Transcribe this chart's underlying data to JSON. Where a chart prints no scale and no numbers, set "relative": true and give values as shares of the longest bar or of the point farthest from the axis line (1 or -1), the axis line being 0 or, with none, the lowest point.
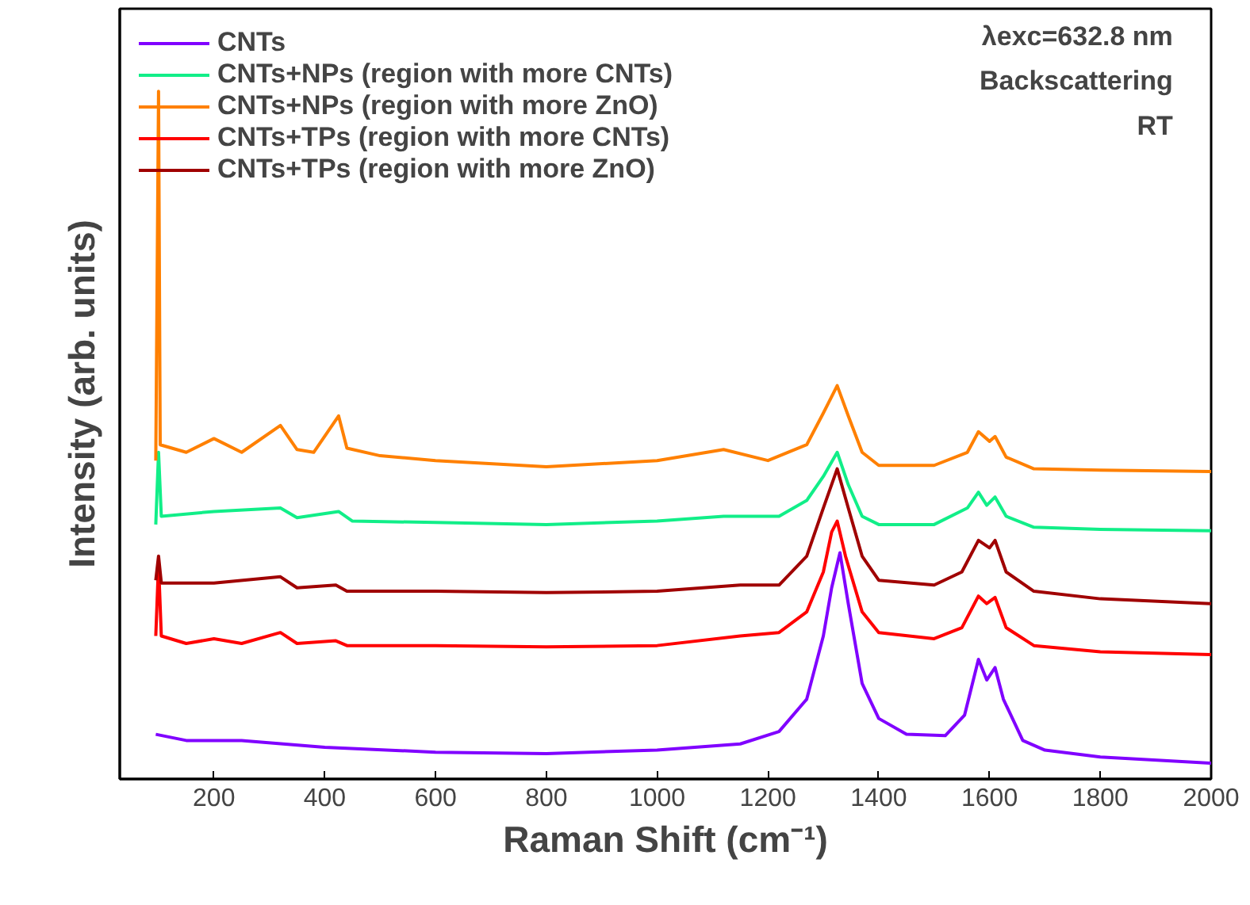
{
  "chart_data": {
    "type": "line",
    "relative": true,
    "xlabel": "Raman Shift (cm⁻¹)",
    "ylabel": "Intensity (arb. units)",
    "xlim": [
      30,
      2000
    ],
    "xticks": [
      200,
      400,
      600,
      800,
      1000,
      1200,
      1400,
      1600,
      1800,
      2000
    ],
    "tick_labels": "x",
    "grid": false,
    "legend": "top left",
    "marker": "none",
    "line_style": "solid",
    "annotations": [
      "λexc=632.8 nm",
      "Backscattering",
      "RT"
    ],
    "series": [
      {
        "name": "CNTs",
        "color": "#8000ff",
        "x": [
          95,
          150,
          250,
          400,
          600,
          800,
          1000,
          1150,
          1220,
          1270,
          1300,
          1315,
          1330,
          1345,
          1370,
          1400,
          1450,
          1520,
          1555,
          1580,
          1595,
          1610,
          1625,
          1660,
          1700,
          1800,
          2000
        ],
        "values": [
          0.065,
          0.056,
          0.056,
          0.046,
          0.039,
          0.037,
          0.042,
          0.051,
          0.069,
          0.116,
          0.208,
          0.278,
          0.329,
          0.255,
          0.139,
          0.088,
          0.065,
          0.063,
          0.093,
          0.174,
          0.144,
          0.162,
          0.116,
          0.056,
          0.042,
          0.032,
          0.023
        ]
      },
      {
        "name": "CNTs+NPs (region with more CNTs)",
        "color": "#11ee88",
        "x": [
          95,
          100,
          105,
          200,
          320,
          350,
          425,
          450,
          600,
          800,
          1000,
          1120,
          1220,
          1270,
          1300,
          1325,
          1345,
          1370,
          1400,
          1500,
          1560,
          1580,
          1595,
          1610,
          1630,
          1680,
          1800,
          2000
        ],
        "values": [
          0.37,
          0.475,
          0.382,
          0.389,
          0.394,
          0.38,
          0.389,
          0.375,
          0.373,
          0.37,
          0.375,
          0.382,
          0.382,
          0.405,
          0.44,
          0.475,
          0.428,
          0.382,
          0.37,
          0.37,
          0.394,
          0.417,
          0.398,
          0.41,
          0.382,
          0.366,
          0.363,
          0.361
        ]
      },
      {
        "name": "CNTs+NPs (region with more ZnO)",
        "color": "#ff8000",
        "x": [
          95,
          100,
          103,
          150,
          200,
          250,
          320,
          350,
          380,
          425,
          440,
          500,
          600,
          800,
          1000,
          1120,
          1200,
          1270,
          1300,
          1325,
          1345,
          1370,
          1400,
          1500,
          1560,
          1580,
          1600,
          1610,
          1630,
          1680,
          1800,
          2000
        ],
        "values": [
          0.463,
          1,
          0.486,
          0.475,
          0.495,
          0.475,
          0.514,
          0.479,
          0.475,
          0.528,
          0.481,
          0.47,
          0.463,
          0.454,
          0.463,
          0.479,
          0.463,
          0.486,
          0.532,
          0.572,
          0.528,
          0.475,
          0.456,
          0.456,
          0.475,
          0.505,
          0.491,
          0.498,
          0.468,
          0.451,
          0.449,
          0.447
        ]
      },
      {
        "name": "CNTs+TPs (region with more CNTs)",
        "color": "#ff0000",
        "x": [
          95,
          100,
          105,
          150,
          200,
          250,
          320,
          350,
          420,
          440,
          600,
          800,
          1000,
          1150,
          1220,
          1270,
          1300,
          1315,
          1325,
          1340,
          1370,
          1400,
          1500,
          1550,
          1580,
          1595,
          1610,
          1630,
          1680,
          1800,
          2000
        ],
        "values": [
          0.208,
          0.313,
          0.208,
          0.197,
          0.204,
          0.197,
          0.213,
          0.197,
          0.201,
          0.194,
          0.194,
          0.192,
          0.194,
          0.208,
          0.213,
          0.243,
          0.301,
          0.359,
          0.375,
          0.324,
          0.243,
          0.213,
          0.204,
          0.22,
          0.266,
          0.255,
          0.264,
          0.22,
          0.194,
          0.185,
          0.181
        ]
      },
      {
        "name": "CNTs+TPs (region with more ZnO)",
        "color": "#a00000",
        "x": [
          95,
          100,
          105,
          200,
          320,
          350,
          420,
          440,
          600,
          800,
          1000,
          1150,
          1220,
          1270,
          1300,
          1325,
          1345,
          1370,
          1400,
          1500,
          1550,
          1580,
          1600,
          1610,
          1630,
          1680,
          1800,
          2000
        ],
        "values": [
          0.289,
          0.324,
          0.285,
          0.285,
          0.294,
          0.278,
          0.282,
          0.273,
          0.273,
          0.271,
          0.273,
          0.282,
          0.282,
          0.324,
          0.394,
          0.451,
          0.394,
          0.324,
          0.289,
          0.282,
          0.301,
          0.347,
          0.336,
          0.347,
          0.301,
          0.273,
          0.262,
          0.255
        ]
      }
    ]
  }
}
